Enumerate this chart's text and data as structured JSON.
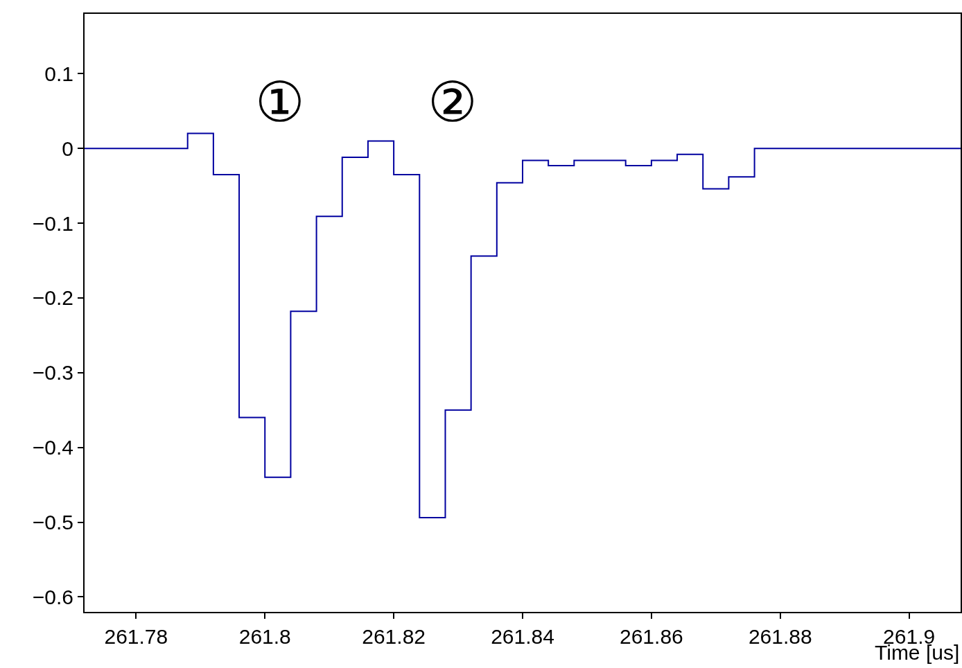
{
  "chart_data": {
    "type": "histogram",
    "xlabel": "Time [us]",
    "bins": [
      261.772,
      261.776,
      261.78,
      261.784,
      261.788,
      261.792,
      261.796,
      261.8,
      261.804,
      261.808,
      261.812,
      261.816,
      261.82,
      261.824,
      261.828,
      261.832,
      261.836,
      261.84,
      261.844,
      261.848,
      261.852,
      261.856,
      261.86,
      261.864,
      261.868,
      261.872,
      261.876,
      261.88,
      261.884,
      261.888,
      261.892,
      261.896,
      261.9,
      261.904,
      261.908
    ],
    "values": [
      0,
      0,
      0,
      0,
      0.02,
      -0.035,
      -0.36,
      -0.44,
      -0.218,
      -0.091,
      -0.012,
      0.01,
      -0.035,
      -0.494,
      -0.35,
      -0.144,
      -0.046,
      -0.016,
      -0.023,
      -0.016,
      -0.016,
      -0.023,
      -0.016,
      -0.008,
      -0.054,
      -0.038,
      0,
      0,
      0,
      0,
      0,
      0,
      0,
      0
    ],
    "color": "#0000a0",
    "xlim": [
      261.772,
      261.908
    ],
    "xticks": [
      261.78,
      261.8,
      261.82,
      261.84,
      261.86,
      261.88,
      261.9
    ],
    "ylim": [
      -0.62,
      0.18
    ],
    "yticks": [
      0.1,
      0,
      {
        "value": -0.1,
        "label": "−0.1"
      },
      {
        "value": -0.2,
        "label": "−0.2"
      },
      {
        "value": -0.3,
        "label": "−0.3"
      },
      {
        "value": -0.4,
        "label": "−0.4"
      },
      {
        "value": -0.5,
        "label": "−0.5"
      },
      {
        "value": -0.6,
        "label": "−0.6"
      }
    ],
    "annotations": [
      "①",
      "②"
    ],
    "grid": false,
    "legend": false
  }
}
